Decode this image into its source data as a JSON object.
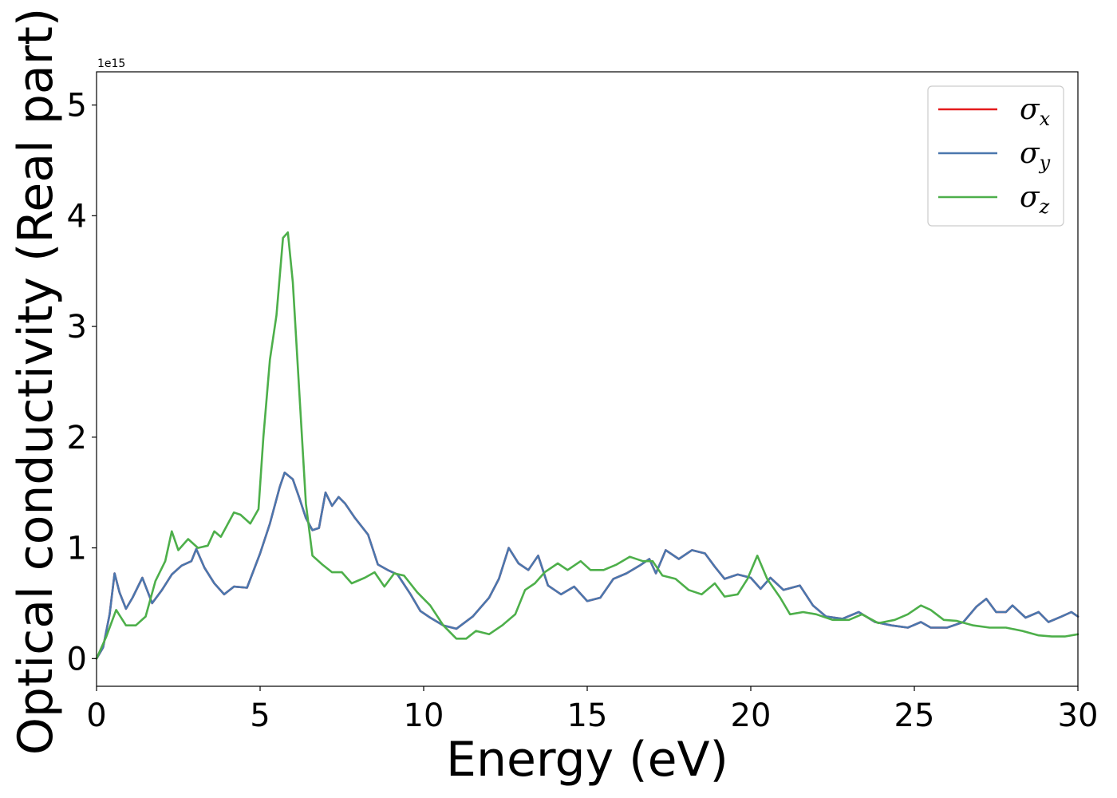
{
  "chart_data": {
    "type": "line",
    "title": "",
    "xlabel": "Energy (eV)",
    "ylabel": "Optical conductivity (Real part)",
    "y_offset_label": "1e15",
    "xlim": [
      0,
      30
    ],
    "ylim": [
      -0.25,
      5.3
    ],
    "xticks": [
      0,
      5,
      10,
      15,
      20,
      25,
      30
    ],
    "yticks": [
      0,
      1,
      2,
      3,
      4,
      5
    ],
    "xtick_labels": [
      "0",
      "5",
      "10",
      "15",
      "20",
      "25",
      "30"
    ],
    "ytick_labels": [
      "0",
      "1",
      "2",
      "3",
      "4",
      "5"
    ],
    "grid": false,
    "legend_position": "top-right",
    "series": [
      {
        "symbol": "σ",
        "subscript": "x",
        "color": "#e41a1c",
        "points": [
          [
            0,
            0
          ],
          [
            0.2,
            0.1
          ],
          [
            0.4,
            0.4
          ],
          [
            0.55,
            0.77
          ],
          [
            0.7,
            0.6
          ],
          [
            0.9,
            0.45
          ],
          [
            1.1,
            0.55
          ],
          [
            1.4,
            0.73
          ],
          [
            1.7,
            0.5
          ],
          [
            2.0,
            0.62
          ],
          [
            2.3,
            0.76
          ],
          [
            2.6,
            0.84
          ],
          [
            2.9,
            0.88
          ],
          [
            3.05,
            0.99
          ],
          [
            3.3,
            0.82
          ],
          [
            3.6,
            0.68
          ],
          [
            3.9,
            0.58
          ],
          [
            4.2,
            0.65
          ],
          [
            4.6,
            0.64
          ],
          [
            5.0,
            0.95
          ],
          [
            5.3,
            1.22
          ],
          [
            5.6,
            1.55
          ],
          [
            5.75,
            1.68
          ],
          [
            6.0,
            1.62
          ],
          [
            6.2,
            1.45
          ],
          [
            6.4,
            1.27
          ],
          [
            6.6,
            1.16
          ],
          [
            6.8,
            1.18
          ],
          [
            7.0,
            1.5
          ],
          [
            7.2,
            1.38
          ],
          [
            7.4,
            1.46
          ],
          [
            7.6,
            1.4
          ],
          [
            7.9,
            1.27
          ],
          [
            8.3,
            1.12
          ],
          [
            8.6,
            0.85
          ],
          [
            8.9,
            0.8
          ],
          [
            9.2,
            0.76
          ],
          [
            9.6,
            0.58
          ],
          [
            9.9,
            0.43
          ],
          [
            10.2,
            0.37
          ],
          [
            10.6,
            0.3
          ],
          [
            11.0,
            0.27
          ],
          [
            11.5,
            0.38
          ],
          [
            12.0,
            0.55
          ],
          [
            12.3,
            0.72
          ],
          [
            12.6,
            1.0
          ],
          [
            12.9,
            0.86
          ],
          [
            13.2,
            0.8
          ],
          [
            13.5,
            0.93
          ],
          [
            13.8,
            0.66
          ],
          [
            14.2,
            0.58
          ],
          [
            14.6,
            0.65
          ],
          [
            15.0,
            0.52
          ],
          [
            15.4,
            0.55
          ],
          [
            15.8,
            0.72
          ],
          [
            16.2,
            0.77
          ],
          [
            16.6,
            0.84
          ],
          [
            16.9,
            0.9
          ],
          [
            17.1,
            0.77
          ],
          [
            17.4,
            0.98
          ],
          [
            17.8,
            0.9
          ],
          [
            18.2,
            0.98
          ],
          [
            18.6,
            0.95
          ],
          [
            18.9,
            0.83
          ],
          [
            19.2,
            0.72
          ],
          [
            19.6,
            0.76
          ],
          [
            20.0,
            0.73
          ],
          [
            20.3,
            0.63
          ],
          [
            20.6,
            0.73
          ],
          [
            21.0,
            0.62
          ],
          [
            21.5,
            0.66
          ],
          [
            21.9,
            0.48
          ],
          [
            22.3,
            0.38
          ],
          [
            22.8,
            0.36
          ],
          [
            23.3,
            0.42
          ],
          [
            23.8,
            0.33
          ],
          [
            24.3,
            0.3
          ],
          [
            24.8,
            0.28
          ],
          [
            25.2,
            0.33
          ],
          [
            25.5,
            0.28
          ],
          [
            26.0,
            0.28
          ],
          [
            26.5,
            0.33
          ],
          [
            26.9,
            0.47
          ],
          [
            27.2,
            0.54
          ],
          [
            27.5,
            0.42
          ],
          [
            27.8,
            0.42
          ],
          [
            28.0,
            0.48
          ],
          [
            28.4,
            0.37
          ],
          [
            28.8,
            0.42
          ],
          [
            29.1,
            0.33
          ],
          [
            29.5,
            0.38
          ],
          [
            29.8,
            0.42
          ],
          [
            30.0,
            0.38
          ]
        ]
      },
      {
        "symbol": "σ",
        "subscript": "y",
        "color": "#4a77ae",
        "points": [
          [
            0,
            0
          ],
          [
            0.2,
            0.1
          ],
          [
            0.4,
            0.4
          ],
          [
            0.55,
            0.77
          ],
          [
            0.7,
            0.6
          ],
          [
            0.9,
            0.45
          ],
          [
            1.1,
            0.55
          ],
          [
            1.4,
            0.73
          ],
          [
            1.7,
            0.5
          ],
          [
            2.0,
            0.62
          ],
          [
            2.3,
            0.76
          ],
          [
            2.6,
            0.84
          ],
          [
            2.9,
            0.88
          ],
          [
            3.05,
            0.99
          ],
          [
            3.3,
            0.82
          ],
          [
            3.6,
            0.68
          ],
          [
            3.9,
            0.58
          ],
          [
            4.2,
            0.65
          ],
          [
            4.6,
            0.64
          ],
          [
            5.0,
            0.95
          ],
          [
            5.3,
            1.22
          ],
          [
            5.6,
            1.55
          ],
          [
            5.75,
            1.68
          ],
          [
            6.0,
            1.62
          ],
          [
            6.2,
            1.45
          ],
          [
            6.4,
            1.27
          ],
          [
            6.6,
            1.16
          ],
          [
            6.8,
            1.18
          ],
          [
            7.0,
            1.5
          ],
          [
            7.2,
            1.38
          ],
          [
            7.4,
            1.46
          ],
          [
            7.6,
            1.4
          ],
          [
            7.9,
            1.27
          ],
          [
            8.3,
            1.12
          ],
          [
            8.6,
            0.85
          ],
          [
            8.9,
            0.8
          ],
          [
            9.2,
            0.76
          ],
          [
            9.6,
            0.58
          ],
          [
            9.9,
            0.43
          ],
          [
            10.2,
            0.37
          ],
          [
            10.6,
            0.3
          ],
          [
            11.0,
            0.27
          ],
          [
            11.5,
            0.38
          ],
          [
            12.0,
            0.55
          ],
          [
            12.3,
            0.72
          ],
          [
            12.6,
            1.0
          ],
          [
            12.9,
            0.86
          ],
          [
            13.2,
            0.8
          ],
          [
            13.5,
            0.93
          ],
          [
            13.8,
            0.66
          ],
          [
            14.2,
            0.58
          ],
          [
            14.6,
            0.65
          ],
          [
            15.0,
            0.52
          ],
          [
            15.4,
            0.55
          ],
          [
            15.8,
            0.72
          ],
          [
            16.2,
            0.77
          ],
          [
            16.6,
            0.84
          ],
          [
            16.9,
            0.9
          ],
          [
            17.1,
            0.77
          ],
          [
            17.4,
            0.98
          ],
          [
            17.8,
            0.9
          ],
          [
            18.2,
            0.98
          ],
          [
            18.6,
            0.95
          ],
          [
            18.9,
            0.83
          ],
          [
            19.2,
            0.72
          ],
          [
            19.6,
            0.76
          ],
          [
            20.0,
            0.73
          ],
          [
            20.3,
            0.63
          ],
          [
            20.6,
            0.73
          ],
          [
            21.0,
            0.62
          ],
          [
            21.5,
            0.66
          ],
          [
            21.9,
            0.48
          ],
          [
            22.3,
            0.38
          ],
          [
            22.8,
            0.36
          ],
          [
            23.3,
            0.42
          ],
          [
            23.8,
            0.33
          ],
          [
            24.3,
            0.3
          ],
          [
            24.8,
            0.28
          ],
          [
            25.2,
            0.33
          ],
          [
            25.5,
            0.28
          ],
          [
            26.0,
            0.28
          ],
          [
            26.5,
            0.33
          ],
          [
            26.9,
            0.47
          ],
          [
            27.2,
            0.54
          ],
          [
            27.5,
            0.42
          ],
          [
            27.8,
            0.42
          ],
          [
            28.0,
            0.48
          ],
          [
            28.4,
            0.37
          ],
          [
            28.8,
            0.42
          ],
          [
            29.1,
            0.33
          ],
          [
            29.5,
            0.38
          ],
          [
            29.8,
            0.42
          ],
          [
            30.0,
            0.38
          ]
        ]
      },
      {
        "symbol": "σ",
        "subscript": "z",
        "color": "#4daf4a",
        "points": [
          [
            0,
            0
          ],
          [
            0.3,
            0.2
          ],
          [
            0.6,
            0.44
          ],
          [
            0.9,
            0.3
          ],
          [
            1.2,
            0.3
          ],
          [
            1.5,
            0.38
          ],
          [
            1.8,
            0.7
          ],
          [
            2.1,
            0.88
          ],
          [
            2.3,
            1.15
          ],
          [
            2.5,
            0.98
          ],
          [
            2.8,
            1.08
          ],
          [
            3.1,
            1.0
          ],
          [
            3.4,
            1.02
          ],
          [
            3.6,
            1.15
          ],
          [
            3.8,
            1.1
          ],
          [
            4.2,
            1.32
          ],
          [
            4.4,
            1.3
          ],
          [
            4.7,
            1.22
          ],
          [
            4.95,
            1.35
          ],
          [
            5.1,
            2.0
          ],
          [
            5.3,
            2.7
          ],
          [
            5.5,
            3.1
          ],
          [
            5.7,
            3.8
          ],
          [
            5.85,
            3.85
          ],
          [
            6.0,
            3.4
          ],
          [
            6.2,
            2.4
          ],
          [
            6.4,
            1.4
          ],
          [
            6.6,
            0.93
          ],
          [
            6.9,
            0.85
          ],
          [
            7.2,
            0.78
          ],
          [
            7.5,
            0.78
          ],
          [
            7.8,
            0.68
          ],
          [
            8.2,
            0.73
          ],
          [
            8.5,
            0.78
          ],
          [
            8.8,
            0.65
          ],
          [
            9.1,
            0.77
          ],
          [
            9.4,
            0.75
          ],
          [
            9.8,
            0.6
          ],
          [
            10.2,
            0.48
          ],
          [
            10.6,
            0.3
          ],
          [
            11.0,
            0.18
          ],
          [
            11.3,
            0.18
          ],
          [
            11.6,
            0.25
          ],
          [
            12.0,
            0.22
          ],
          [
            12.4,
            0.3
          ],
          [
            12.8,
            0.4
          ],
          [
            13.1,
            0.62
          ],
          [
            13.4,
            0.68
          ],
          [
            13.7,
            0.78
          ],
          [
            14.1,
            0.86
          ],
          [
            14.4,
            0.8
          ],
          [
            14.8,
            0.88
          ],
          [
            15.1,
            0.8
          ],
          [
            15.5,
            0.8
          ],
          [
            15.9,
            0.85
          ],
          [
            16.3,
            0.92
          ],
          [
            16.7,
            0.88
          ],
          [
            17.0,
            0.88
          ],
          [
            17.3,
            0.75
          ],
          [
            17.7,
            0.72
          ],
          [
            18.1,
            0.62
          ],
          [
            18.5,
            0.58
          ],
          [
            18.9,
            0.68
          ],
          [
            19.2,
            0.56
          ],
          [
            19.6,
            0.58
          ],
          [
            19.9,
            0.72
          ],
          [
            20.2,
            0.93
          ],
          [
            20.5,
            0.72
          ],
          [
            20.9,
            0.55
          ],
          [
            21.2,
            0.4
          ],
          [
            21.6,
            0.42
          ],
          [
            22.0,
            0.4
          ],
          [
            22.5,
            0.35
          ],
          [
            23.0,
            0.35
          ],
          [
            23.4,
            0.4
          ],
          [
            23.9,
            0.32
          ],
          [
            24.4,
            0.35
          ],
          [
            24.8,
            0.4
          ],
          [
            25.2,
            0.48
          ],
          [
            25.5,
            0.44
          ],
          [
            25.9,
            0.35
          ],
          [
            26.3,
            0.34
          ],
          [
            26.8,
            0.3
          ],
          [
            27.3,
            0.28
          ],
          [
            27.8,
            0.28
          ],
          [
            28.3,
            0.25
          ],
          [
            28.8,
            0.21
          ],
          [
            29.2,
            0.2
          ],
          [
            29.6,
            0.2
          ],
          [
            30.0,
            0.22
          ]
        ]
      }
    ]
  }
}
